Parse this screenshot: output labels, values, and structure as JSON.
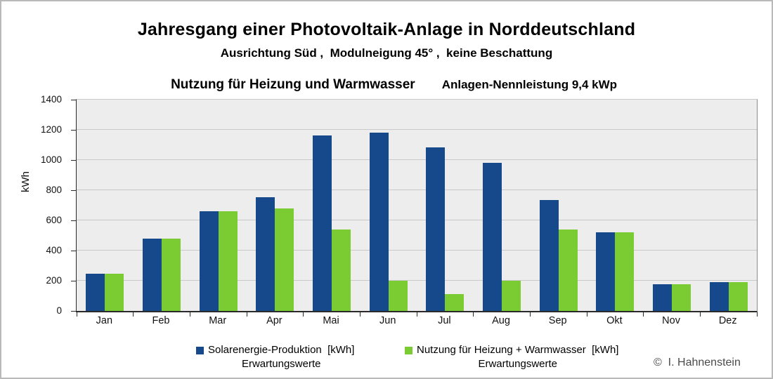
{
  "header": {
    "title": "Jahresgang einer Photovoltaik-Anlage in Norddeutschland",
    "subtitle_line1": "Ausrichtung Süd ,  Modulneigung 45° ,  keine Beschattung",
    "subtitle_line2_left": "Nutzung für Heizung und Warmwasser",
    "subtitle_line2_right": "Anlagen-Nennleistung 9,4 kWp"
  },
  "copyright": "©  I. Hahnenstein",
  "colors": {
    "production_blue": "#15498c",
    "usage_green": "#7bcc33",
    "plot_background": "#ededed",
    "gridline_gray": "#c9c9c9"
  },
  "chart_data": {
    "type": "bar",
    "categories": [
      "Jan",
      "Feb",
      "Mar",
      "Apr",
      "Mai",
      "Jun",
      "Jul",
      "Aug",
      "Sep",
      "Okt",
      "Nov",
      "Dez"
    ],
    "series": [
      {
        "key": "production",
        "name": "Solarenergie-Produktion  [kWh]",
        "subname": "Erwartungswerte",
        "color": "#15498c",
        "values": [
          245,
          480,
          660,
          755,
          1165,
          1180,
          1085,
          980,
          735,
          520,
          175,
          190
        ]
      },
      {
        "key": "usage",
        "name": "Nutzung für Heizung + Warmwasser  [kWh]",
        "subname": "Erwartungswerte",
        "color": "#7bcc33",
        "values": [
          245,
          480,
          660,
          680,
          540,
          200,
          110,
          200,
          540,
          520,
          175,
          190
        ]
      }
    ],
    "ylabel": "kWh",
    "ylim": [
      0,
      1400
    ],
    "ytick_step": 200,
    "grid": true,
    "legend_position": "bottom"
  }
}
